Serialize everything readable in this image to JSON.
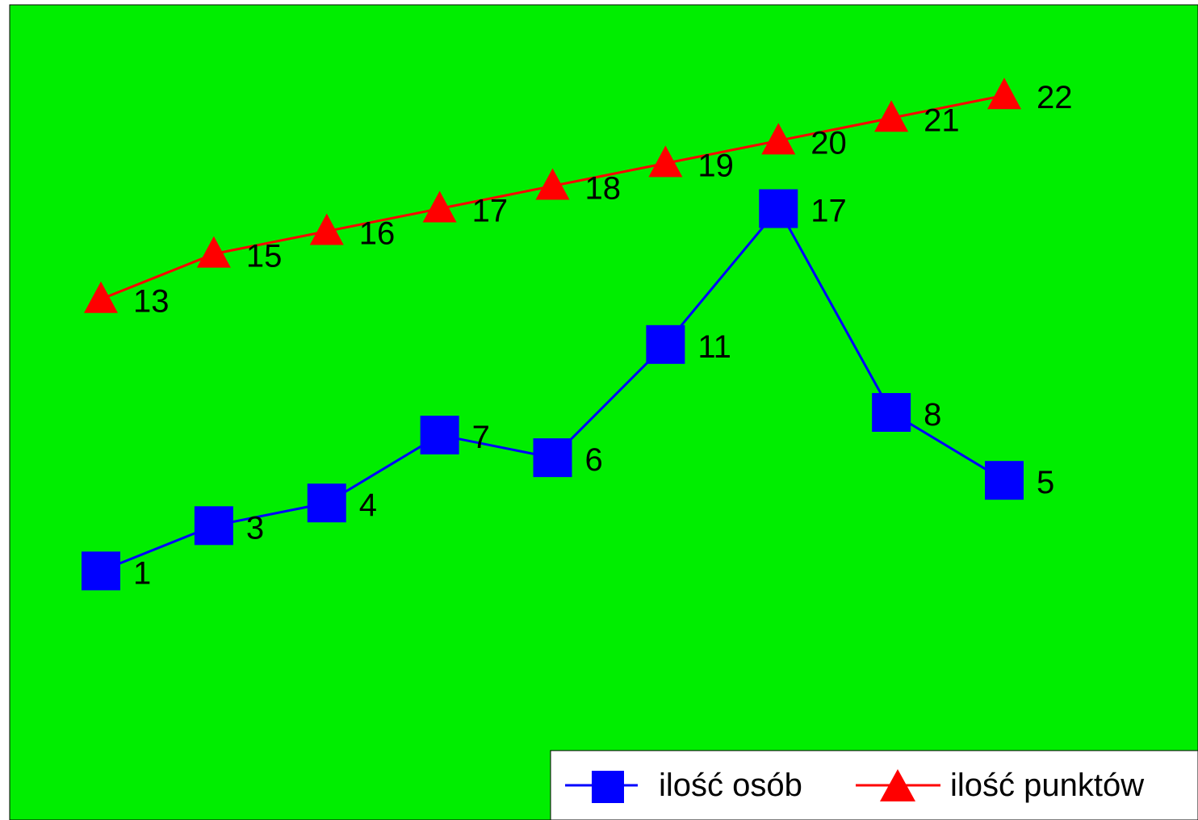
{
  "chart_data": {
    "type": "line",
    "title": "",
    "xlabel": "",
    "ylabel": "",
    "x": [
      1,
      2,
      3,
      4,
      5,
      6,
      7,
      8,
      9
    ],
    "ylim": [
      -10,
      26
    ],
    "grid": false,
    "legend_position": "bottom-right",
    "background_color": "#00ee00",
    "series": [
      {
        "name": "ilość osób",
        "color": "#0000ff",
        "marker": "square",
        "values": [
          1,
          3,
          4,
          7,
          6,
          11,
          17,
          8,
          5
        ],
        "labels": [
          "1",
          "3",
          "4",
          "7",
          "6",
          "11",
          "17",
          "8",
          "5"
        ]
      },
      {
        "name": "ilość punktów",
        "color": "#ff0000",
        "marker": "triangle",
        "values": [
          13,
          15,
          16,
          17,
          18,
          19,
          20,
          21,
          22
        ],
        "labels": [
          "13",
          "15",
          "16",
          "17",
          "18",
          "19",
          "20",
          "21",
          "22"
        ]
      }
    ]
  }
}
